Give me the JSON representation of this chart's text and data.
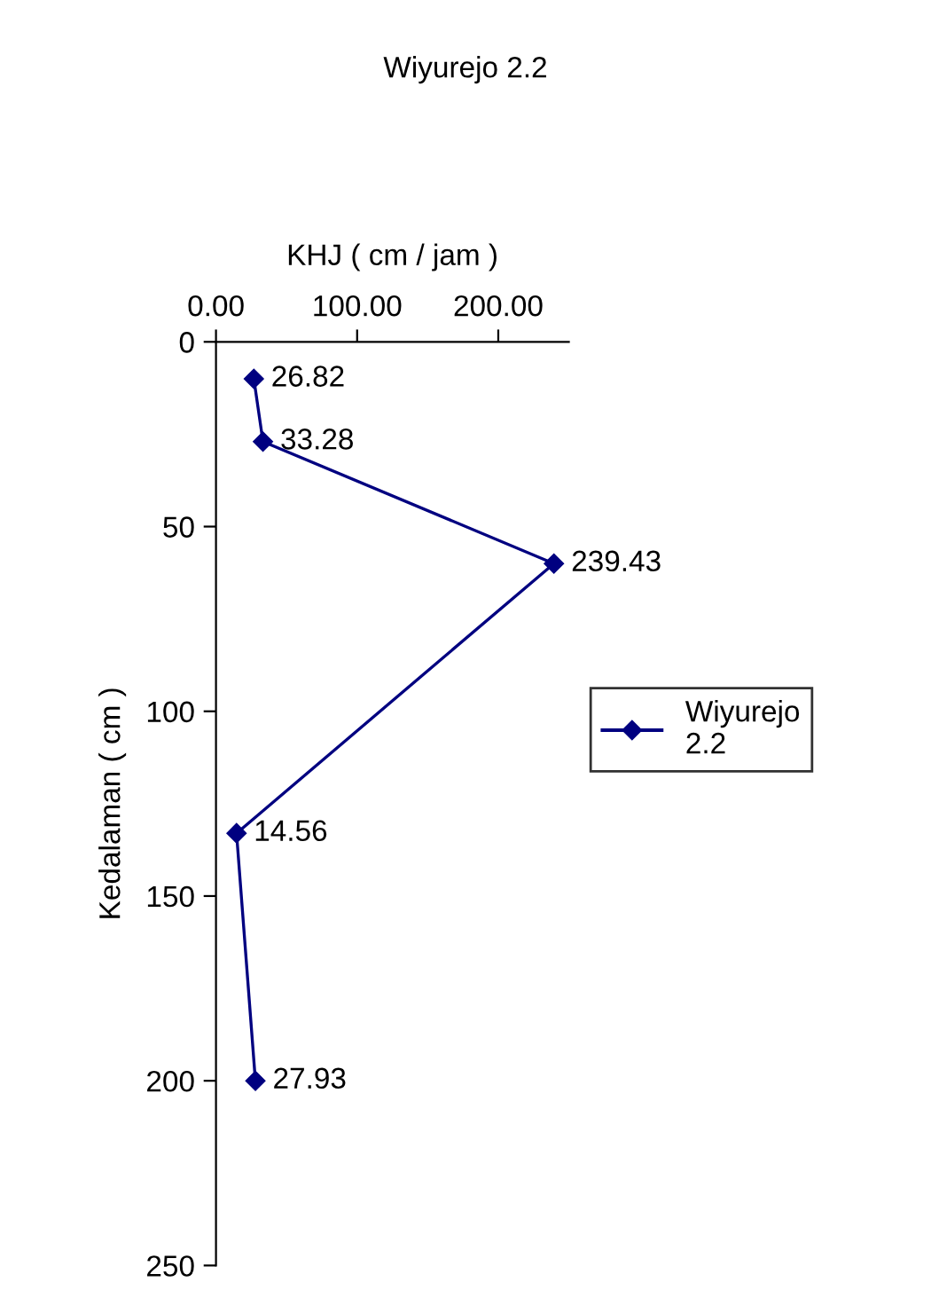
{
  "chart_data": {
    "type": "line",
    "orientation": "horizontal",
    "title": "Wiyurejo 2.2",
    "xlabel": "KHJ ( cm / jam )",
    "ylabel": "Kedalaman ( cm )",
    "xlim": [
      0,
      250
    ],
    "xticks": [
      {
        "value": 0,
        "label": "0.00"
      },
      {
        "value": 100,
        "label": "100.00"
      },
      {
        "value": 200,
        "label": "200.00"
      }
    ],
    "ylim": [
      250,
      0
    ],
    "yticks": [
      0,
      50,
      100,
      150,
      200,
      250
    ],
    "series": [
      {
        "name": "Wiyurejo 2.2",
        "color": "#000080",
        "x": [
          10,
          27,
          60,
          133,
          200
        ],
        "values": [
          26.82,
          33.28,
          239.43,
          14.56,
          27.93
        ]
      }
    ],
    "data_labels": true,
    "marker": "diamond",
    "legend": "right",
    "grid": false
  }
}
